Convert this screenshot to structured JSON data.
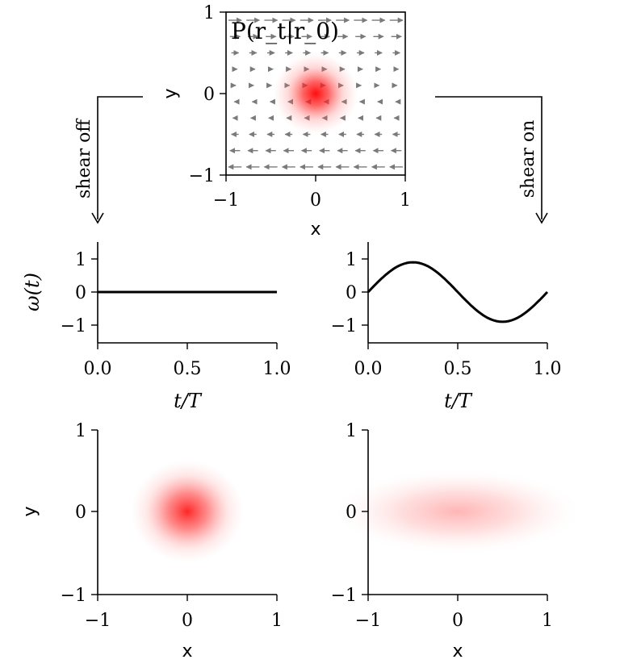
{
  "labels": {
    "top_title": "P(r_t|r_0)",
    "shear_off": "shear off",
    "shear_on": "shear on",
    "omega_label": "ω(t)",
    "time_label": "t/T",
    "x_label": "x",
    "y_label": "y"
  },
  "chart_data": [
    {
      "id": "top",
      "type": "heatmap",
      "title": "P(r_t|r_0)",
      "xlabel": "x",
      "ylabel": "y",
      "xlim": [
        -1,
        1
      ],
      "ylim": [
        -1,
        1
      ],
      "xticks": [
        "−1",
        "0",
        "1"
      ],
      "yticks": [
        "−1",
        "0",
        "1"
      ],
      "gaussian": {
        "center": [
          0,
          0
        ],
        "sigma_x": 0.22,
        "sigma_y": 0.22,
        "color": "#ff0000"
      },
      "vector_field": "shear u = -y",
      "arrow_color": "#7a7a7a"
    },
    {
      "id": "omega_off",
      "type": "line",
      "xlabel": "t/T",
      "ylabel": "ω(t)",
      "xlim": [
        0,
        1
      ],
      "ylim": [
        -1.5,
        1.5
      ],
      "xticks": [
        "0.0",
        "0.5",
        "1.0"
      ],
      "yticks": [
        "1",
        "0",
        "−1"
      ],
      "series": [
        {
          "x": [
            0,
            0.25,
            0.5,
            0.75,
            1.0
          ],
          "y": [
            0,
            0,
            0,
            0,
            0
          ]
        }
      ]
    },
    {
      "id": "omega_on",
      "type": "line",
      "xlabel": "t/T",
      "xlim": [
        0,
        1
      ],
      "ylim": [
        -1.5,
        1.5
      ],
      "xticks": [
        "0.0",
        "0.5",
        "1.0"
      ],
      "yticks": [
        "1",
        "0",
        "−1"
      ],
      "series": [
        {
          "function": "0.9*sin(2*pi*t)",
          "amplitude": 0.9
        }
      ]
    },
    {
      "id": "result_off",
      "type": "heatmap",
      "xlabel": "x",
      "ylabel": "y",
      "xlim": [
        -1,
        1
      ],
      "ylim": [
        -1,
        1
      ],
      "xticks": [
        "−1",
        "0",
        "1"
      ],
      "yticks": [
        "−1",
        "0",
        "1"
      ],
      "gaussian": {
        "center": [
          0,
          0
        ],
        "sigma_x": 0.25,
        "sigma_y": 0.25,
        "color": "#ff0000"
      }
    },
    {
      "id": "result_on",
      "type": "heatmap",
      "xlabel": "x",
      "xlim": [
        -1,
        1
      ],
      "ylim": [
        -1,
        1
      ],
      "xticks": [
        "−1",
        "0",
        "1"
      ],
      "yticks": [
        "−1",
        "0",
        "1"
      ],
      "gaussian": {
        "center": [
          0,
          0
        ],
        "sigma_x": 0.72,
        "sigma_y": 0.2,
        "color": "#ff0000"
      }
    }
  ]
}
